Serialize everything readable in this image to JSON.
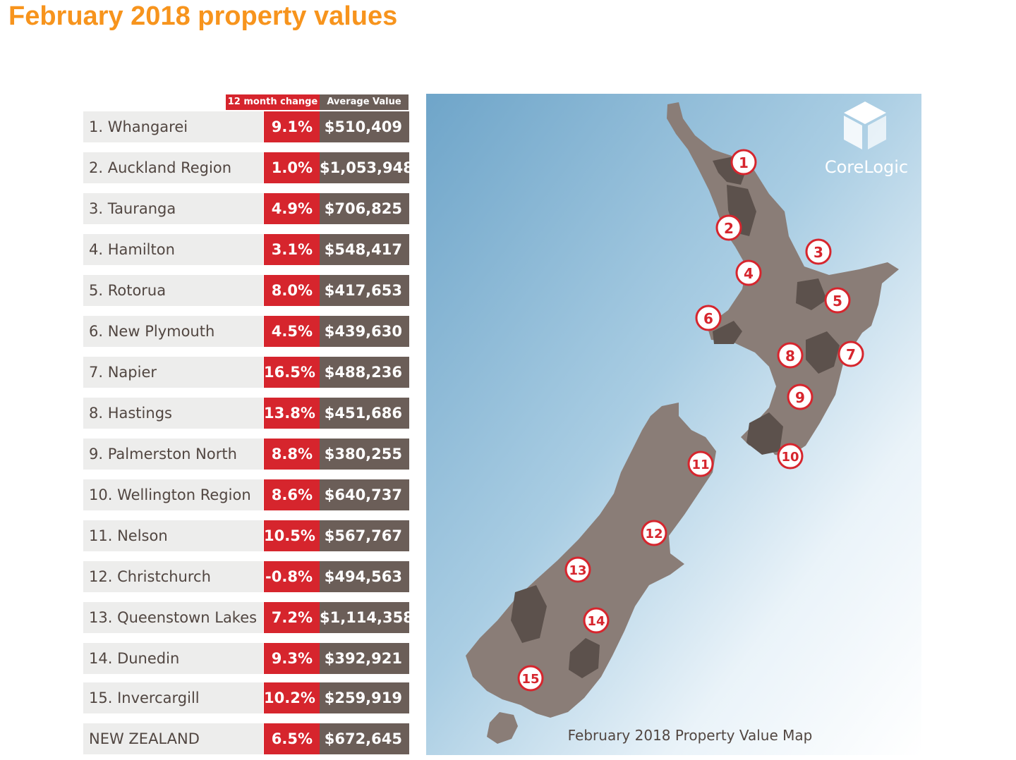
{
  "title": "February 2018 property values",
  "table": {
    "header_change": "12 month change",
    "header_value": "Average Value",
    "rows": [
      {
        "name": "1. Whangarei",
        "change": "9.1%",
        "value": "$510,409"
      },
      {
        "name": "2. Auckland Region",
        "change": "1.0%",
        "value": "$1,053,948"
      },
      {
        "name": "3. Tauranga",
        "change": "4.9%",
        "value": "$706,825"
      },
      {
        "name": "4. Hamilton",
        "change": "3.1%",
        "value": "$548,417"
      },
      {
        "name": "5. Rotorua",
        "change": "8.0%",
        "value": "$417,653"
      },
      {
        "name": "6. New Plymouth",
        "change": "4.5%",
        "value": "$439,630"
      },
      {
        "name": "7. Napier",
        "change": "16.5%",
        "value": "$488,236"
      },
      {
        "name": "8. Hastings",
        "change": "13.8%",
        "value": "$451,686"
      },
      {
        "name": "9. Palmerston North",
        "change": "8.8%",
        "value": "$380,255"
      },
      {
        "name": "10. Wellington Region",
        "change": "8.6%",
        "value": "$640,737"
      },
      {
        "name": "11. Nelson",
        "change": "10.5%",
        "value": "$567,767"
      },
      {
        "name": "12. Christchurch",
        "change": "-0.8%",
        "value": "$494,563"
      },
      {
        "name": "13. Queenstown Lakes",
        "change": "7.2%",
        "value": "$1,114,358"
      },
      {
        "name": "14. Dunedin",
        "change": "9.3%",
        "value": "$392,921"
      },
      {
        "name": "15. Invercargill",
        "change": "10.2%",
        "value": "$259,919"
      },
      {
        "name": "NEW ZEALAND",
        "change": "6.5%",
        "value": "$672,645"
      }
    ]
  },
  "map": {
    "caption": "February 2018 Property Value Map",
    "brand": "CoreLogic",
    "markers": [
      "1",
      "2",
      "3",
      "4",
      "5",
      "6",
      "7",
      "8",
      "9",
      "10",
      "11",
      "12",
      "13",
      "14",
      "15"
    ]
  },
  "colors": {
    "title": "#f7941d",
    "change_cell": "#d6252d",
    "value_cell": "#6b5e58",
    "name_cell": "#ededec",
    "land": "#8a7d77",
    "land_dark": "#5c514c",
    "sea": "#8ab6d4"
  }
}
